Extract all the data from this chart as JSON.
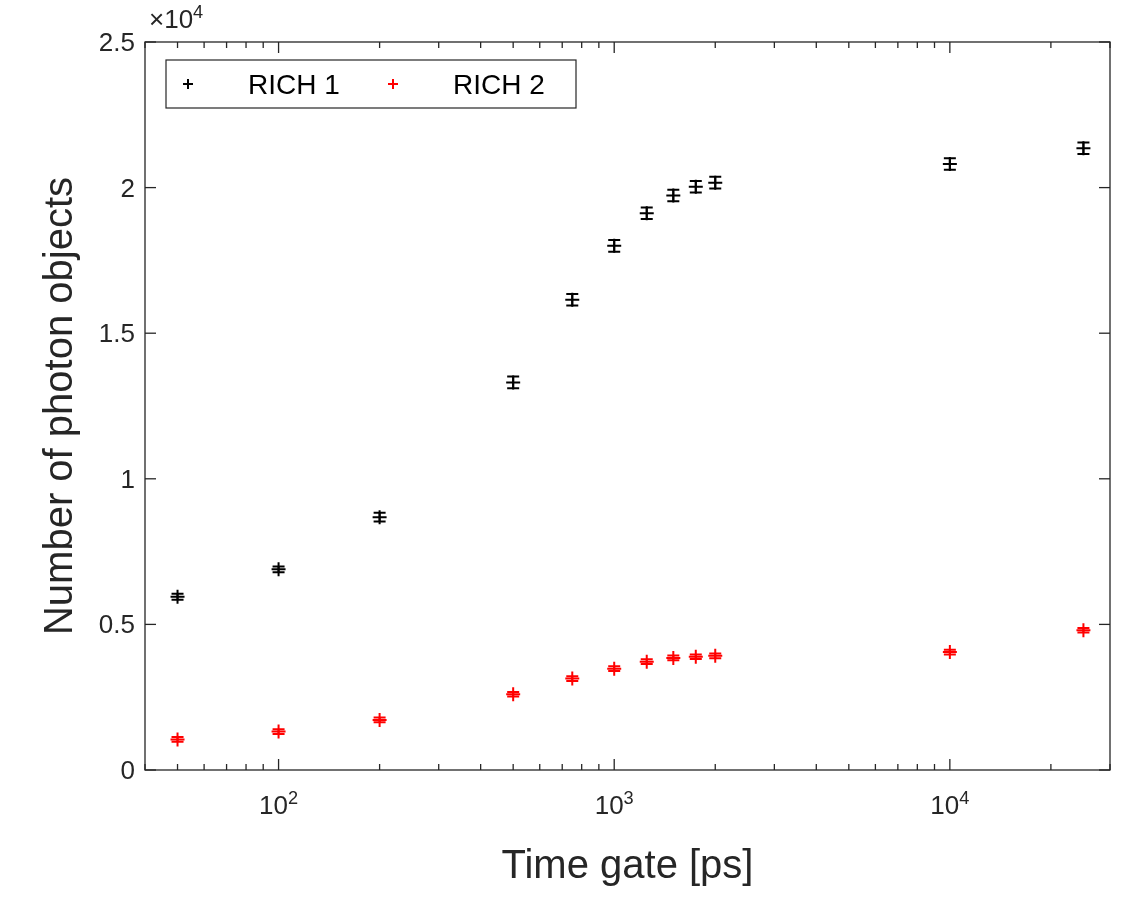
{
  "chart_data": {
    "type": "scatter",
    "xlabel": "Time gate [ps]",
    "ylabel": "Number of photon objects",
    "annotations": [
      "×10$^{4}$"
    ],
    "log": "x",
    "marker": "cross",
    "legend": "top left",
    "grid": false,
    "xlim": [
      40,
      30000
    ],
    "ylim": [
      0,
      2.5
    ],
    "xticks": [
      {
        "value": 40,
        "label": null
      },
      {
        "value": 50,
        "label": null
      },
      {
        "value": 60,
        "label": null
      },
      {
        "value": 70,
        "label": null
      },
      {
        "value": 80,
        "label": null
      },
      {
        "value": 90,
        "label": null
      },
      {
        "value": 100,
        "label": "10$^{2}$"
      },
      {
        "value": 200,
        "label": null
      },
      {
        "value": 300,
        "label": null
      },
      {
        "value": 400,
        "label": null
      },
      {
        "value": 500,
        "label": null
      },
      {
        "value": 600,
        "label": null
      },
      {
        "value": 700,
        "label": null
      },
      {
        "value": 800,
        "label": null
      },
      {
        "value": 900,
        "label": null
      },
      {
        "value": 1000,
        "label": "10$^{3}$"
      },
      {
        "value": 2000,
        "label": null
      },
      {
        "value": 3000,
        "label": null
      },
      {
        "value": 4000,
        "label": null
      },
      {
        "value": 5000,
        "label": null
      },
      {
        "value": 6000,
        "label": null
      },
      {
        "value": 7000,
        "label": null
      },
      {
        "value": 8000,
        "label": null
      },
      {
        "value": 9000,
        "label": null
      },
      {
        "value": 10000,
        "label": "10$^{4}$"
      },
      {
        "value": 20000,
        "label": null
      },
      {
        "value": 30000,
        "label": null
      }
    ],
    "yticks": [
      0,
      0.5,
      1,
      1.5,
      2,
      2.5
    ],
    "x": [
      50,
      100,
      200,
      500,
      750,
      1000,
      1250,
      1500,
      1750,
      2000,
      10000,
      25000
    ],
    "series": [
      {
        "name": "RICH 1",
        "color": "#000000",
        "values": [
          0.595,
          0.689,
          0.868,
          1.331,
          1.615,
          1.8,
          1.912,
          1.973,
          2.003,
          2.017,
          2.081,
          2.135
        ],
        "errors": [
          0.01,
          0.01,
          0.015,
          0.02,
          0.02,
          0.02,
          0.02,
          0.02,
          0.02,
          0.02,
          0.02,
          0.02
        ]
      },
      {
        "name": "RICH 2",
        "color": "#ff0000",
        "values": [
          0.105,
          0.132,
          0.172,
          0.26,
          0.314,
          0.348,
          0.372,
          0.385,
          0.389,
          0.392,
          0.405,
          0.48
        ],
        "errors": [
          0.008,
          0.008,
          0.008,
          0.008,
          0.008,
          0.008,
          0.008,
          0.008,
          0.008,
          0.008,
          0.008,
          0.008
        ]
      }
    ]
  }
}
